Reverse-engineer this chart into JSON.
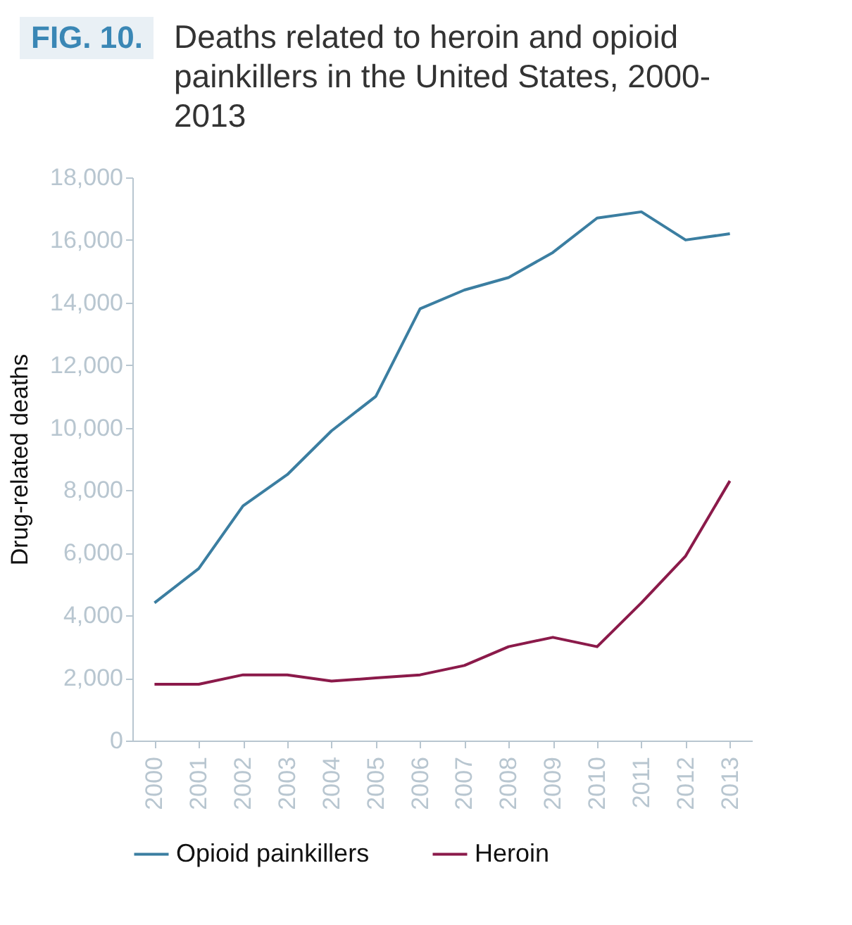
{
  "chart_data": {
    "type": "line",
    "title": "FIG. 10.",
    "subtitle": "Deaths related to heroin and opioid painkillers in the United States, 2000-2013",
    "ylabel": "Drug-related deaths",
    "categories": [
      "2000",
      "2001",
      "2002",
      "2003",
      "2004",
      "2005",
      "2006",
      "2007",
      "2008",
      "2009",
      "2010",
      "2011",
      "2012",
      "2013"
    ],
    "series": [
      {
        "name": "Opioid painkillers",
        "color": "#3b7ea1",
        "values": [
          4400,
          5500,
          7500,
          8500,
          9900,
          11000,
          13800,
          14400,
          14800,
          15600,
          16700,
          16900,
          16000,
          16200
        ]
      },
      {
        "name": "Heroin",
        "color": "#8b1a4a",
        "values": [
          1800,
          1800,
          2100,
          2100,
          1900,
          2000,
          2100,
          2400,
          3000,
          3300,
          3000,
          4400,
          5900,
          8300
        ]
      }
    ],
    "ylim": [
      0,
      18000
    ],
    "yticks": [
      0,
      {
        "value": 2000,
        "label": "2,000"
      },
      {
        "value": 4000,
        "label": "4,000"
      },
      {
        "value": 6000,
        "label": "6,000"
      },
      {
        "value": 8000,
        "label": "8,000"
      },
      {
        "value": 10000,
        "label": "10,000"
      },
      {
        "value": 12000,
        "label": "12,000"
      },
      {
        "value": 14000,
        "label": "14,000"
      },
      {
        "value": 16000,
        "label": "16,000"
      },
      {
        "value": 18000,
        "label": "18,000"
      }
    ],
    "grid": false,
    "legend": "bottom",
    "marker": "none",
    "line_style": "solid"
  }
}
